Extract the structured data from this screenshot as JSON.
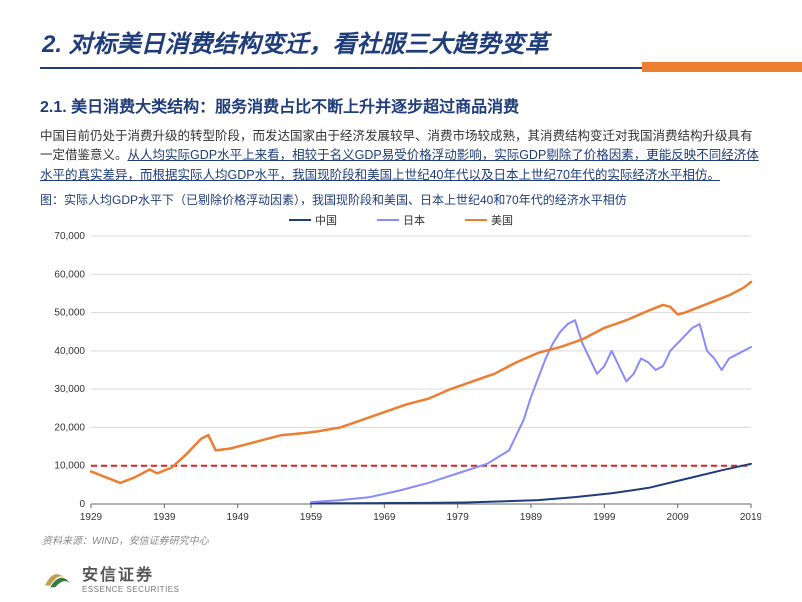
{
  "title": "2. 对标美日消费结构变迁，看社服三大趋势变革",
  "subtitle": "2.1. 美日消费大类结构：服务消费占比不断上升并逐步超过商品消费",
  "paragraph_plain": "中国目前仍处于消费升级的转型阶段，而发达国家由于经济发展较早、消费市场较成熟，其消费结构变迁对我国消费结构升级具有一定借鉴意义。",
  "paragraph_underlined": "从人均实际GDP水平上来看，相较于名义GDP易受价格浮动影响，实际GDP剔除了价格因素，更能反映不同经济体水平的真实差异，而根据实际人均GDP水平，我国现阶段和美国上世纪40年代以及日本上世纪70年代的实际经济水平相仿。",
  "chart_caption": "图：实际人均GDP水平下（已剔除价格浮动因素），我国现阶段和美国、日本上世纪40和70年代的经济水平相仿",
  "source": "资料来源：WIND，安信证券研究中心",
  "logo": {
    "cn": "安信证券",
    "en": "ESSENCE SECURITIES"
  },
  "chart": {
    "type": "line",
    "x_start": 1929,
    "x_end": 2019,
    "x_step": 10,
    "x_ticks": [
      1929,
      1939,
      1949,
      1959,
      1969,
      1979,
      1989,
      1999,
      2009,
      2019
    ],
    "y_min": 0,
    "y_max": 70000,
    "y_step": 10000,
    "y_ticks": [
      0,
      10000,
      20000,
      30000,
      40000,
      50000,
      60000,
      70000
    ],
    "reference_line": {
      "value": 10000,
      "color": "#d62728",
      "dash": "6,4",
      "width": 2
    },
    "grid_color": "#d9d9d9",
    "tick_fontsize": 10,
    "tick_color": "#333333",
    "series": [
      {
        "name": "中国",
        "label": "中国",
        "color": "#1f3d7a",
        "width": 2,
        "points": [
          [
            1959,
            150
          ],
          [
            1965,
            200
          ],
          [
            1970,
            250
          ],
          [
            1975,
            300
          ],
          [
            1980,
            400
          ],
          [
            1985,
            700
          ],
          [
            1990,
            1000
          ],
          [
            1995,
            1800
          ],
          [
            2000,
            2800
          ],
          [
            2005,
            4200
          ],
          [
            2010,
            6500
          ],
          [
            2015,
            8800
          ],
          [
            2019,
            10500
          ]
        ]
      },
      {
        "name": "日本",
        "label": "日本",
        "color": "#8a8aff",
        "width": 2,
        "points": [
          [
            1959,
            500
          ],
          [
            1963,
            1000
          ],
          [
            1967,
            1800
          ],
          [
            1971,
            3500
          ],
          [
            1975,
            5500
          ],
          [
            1979,
            8000
          ],
          [
            1983,
            10500
          ],
          [
            1986,
            14000
          ],
          [
            1988,
            22000
          ],
          [
            1989,
            28000
          ],
          [
            1990,
            33000
          ],
          [
            1991,
            38000
          ],
          [
            1992,
            42000
          ],
          [
            1993,
            45000
          ],
          [
            1994,
            47000
          ],
          [
            1995,
            48000
          ],
          [
            1996,
            42000
          ],
          [
            1997,
            38000
          ],
          [
            1998,
            34000
          ],
          [
            1999,
            36000
          ],
          [
            2000,
            40000
          ],
          [
            2001,
            36000
          ],
          [
            2002,
            32000
          ],
          [
            2003,
            34000
          ],
          [
            2004,
            38000
          ],
          [
            2005,
            37000
          ],
          [
            2006,
            35000
          ],
          [
            2007,
            36000
          ],
          [
            2008,
            40000
          ],
          [
            2009,
            42000
          ],
          [
            2010,
            44000
          ],
          [
            2011,
            46000
          ],
          [
            2012,
            47000
          ],
          [
            2013,
            40000
          ],
          [
            2014,
            38000
          ],
          [
            2015,
            35000
          ],
          [
            2016,
            38000
          ],
          [
            2017,
            39000
          ],
          [
            2018,
            40000
          ],
          [
            2019,
            41000
          ]
        ]
      },
      {
        "name": "美国",
        "label": "美国",
        "color": "#ed7d31",
        "width": 2.5,
        "points": [
          [
            1929,
            8500
          ],
          [
            1931,
            7000
          ],
          [
            1933,
            5500
          ],
          [
            1935,
            7000
          ],
          [
            1937,
            9000
          ],
          [
            1938,
            8000
          ],
          [
            1940,
            9500
          ],
          [
            1942,
            13000
          ],
          [
            1944,
            17000
          ],
          [
            1945,
            18000
          ],
          [
            1946,
            14000
          ],
          [
            1948,
            14500
          ],
          [
            1950,
            15500
          ],
          [
            1952,
            16500
          ],
          [
            1955,
            18000
          ],
          [
            1958,
            18500
          ],
          [
            1960,
            19000
          ],
          [
            1963,
            20000
          ],
          [
            1966,
            22000
          ],
          [
            1969,
            24000
          ],
          [
            1972,
            26000
          ],
          [
            1975,
            27500
          ],
          [
            1978,
            30000
          ],
          [
            1981,
            32000
          ],
          [
            1984,
            34000
          ],
          [
            1987,
            37000
          ],
          [
            1990,
            39500
          ],
          [
            1993,
            41000
          ],
          [
            1996,
            43000
          ],
          [
            1999,
            46000
          ],
          [
            2002,
            48000
          ],
          [
            2005,
            50500
          ],
          [
            2007,
            52000
          ],
          [
            2008,
            51500
          ],
          [
            2009,
            49500
          ],
          [
            2010,
            50000
          ],
          [
            2012,
            51500
          ],
          [
            2014,
            53000
          ],
          [
            2016,
            54500
          ],
          [
            2018,
            56500
          ],
          [
            2019,
            58000
          ]
        ]
      }
    ]
  },
  "colors": {
    "title": "#1f3d7a",
    "orange": "#ed7d31",
    "body": "#333333",
    "underline": "#1f3d7a"
  }
}
